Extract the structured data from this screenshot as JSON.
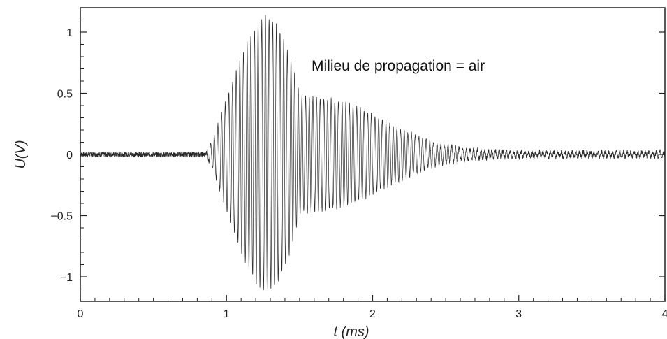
{
  "chart_data": {
    "type": "line",
    "xlabel": "t (ms)",
    "ylabel": "U(V)",
    "annotation": "Milieu de propagation = air",
    "xlim": [
      0,
      4
    ],
    "ylim": [
      -1.2,
      1.2
    ],
    "x_ticks": [
      0,
      1,
      2,
      3,
      4
    ],
    "x_tick_labels": [
      "0",
      "1",
      "2",
      "3",
      "4"
    ],
    "y_ticks": [
      1,
      0.5,
      0,
      -0.5,
      -1
    ],
    "y_tick_labels": [
      "1",
      "0.5",
      "0",
      "−0.5",
      "−1"
    ],
    "grid": false,
    "series": [
      {
        "color": "#2a2a2a",
        "signal_start": 0.86,
        "peak_time": 1.27,
        "peak_amplitude": 1.13,
        "echo_amplitude": 0.46,
        "noise_amplitude": 0.02,
        "oscillation_frequency_khz": 40,
        "envelope": {
          "t": [
            0.0,
            0.86,
            0.9,
            1.0,
            1.1,
            1.2,
            1.27,
            1.35,
            1.45,
            1.5,
            1.6,
            1.7,
            1.8,
            1.9,
            2.0,
            2.2,
            2.4,
            2.6,
            2.8,
            3.0,
            4.0
          ],
          "amplitude": [
            0.02,
            0.02,
            0.1,
            0.45,
            0.8,
            1.05,
            1.13,
            1.05,
            0.75,
            0.48,
            0.46,
            0.45,
            0.42,
            0.38,
            0.32,
            0.2,
            0.1,
            0.05,
            0.03,
            0.02,
            0.02
          ]
        }
      }
    ]
  }
}
